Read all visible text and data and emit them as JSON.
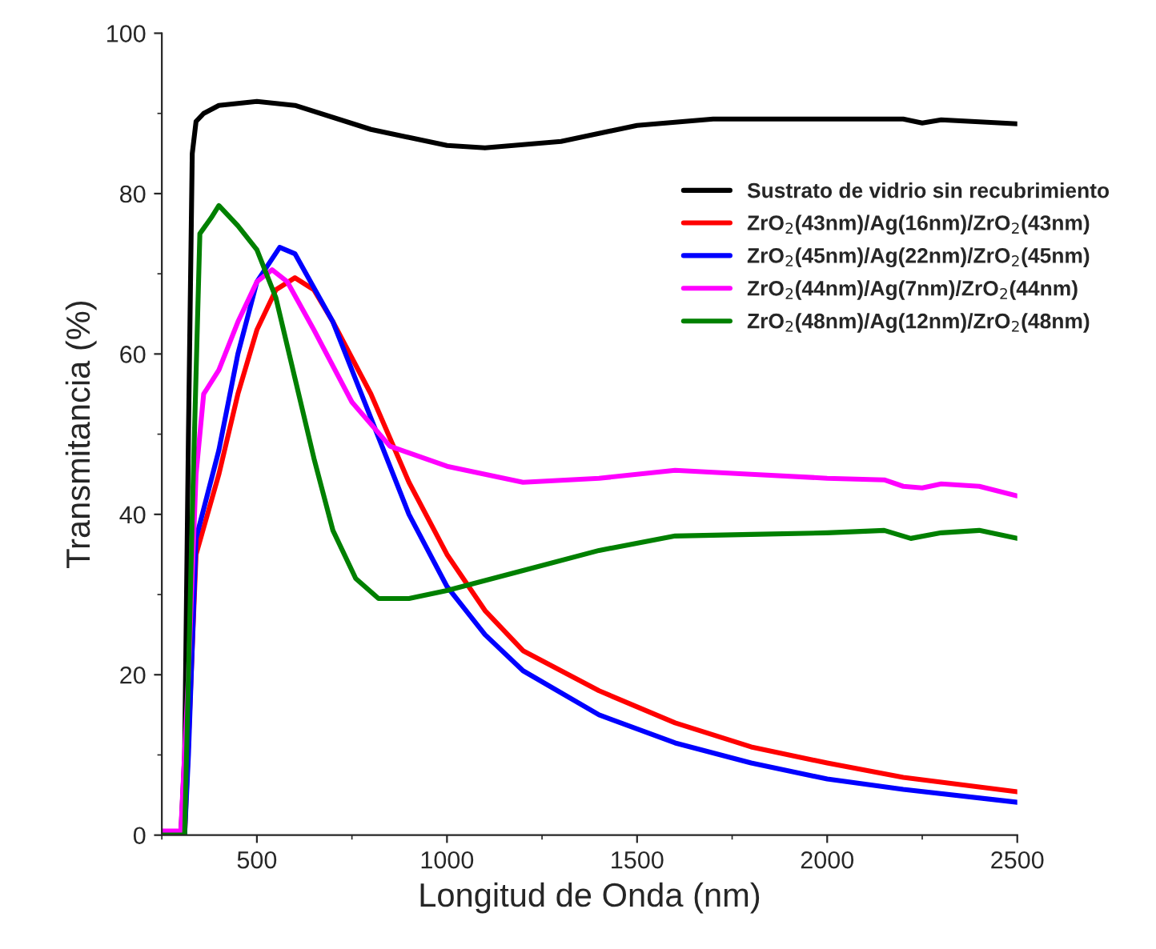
{
  "chart_data": {
    "type": "line",
    "xlabel": "Longitud de Onda (nm)",
    "ylabel": "Transmitancia (%)",
    "xlim": [
      250,
      2500
    ],
    "ylim": [
      0,
      100
    ],
    "xticks": [
      500,
      1000,
      1500,
      2000,
      2500
    ],
    "yticks": [
      0,
      20,
      40,
      60,
      80,
      100
    ],
    "grid": false,
    "legend": "right",
    "line_style": "solid",
    "marker": "none",
    "series": [
      {
        "name": "Sustrato de vidrio sin recubrimiento",
        "color": "#000000",
        "x": [
          250,
          300,
          310,
          320,
          330,
          340,
          360,
          400,
          500,
          600,
          800,
          1000,
          1100,
          1300,
          1500,
          1700,
          2000,
          2200,
          2250,
          2300,
          2500
        ],
        "values": [
          0,
          0,
          10,
          50,
          85,
          89,
          90,
          91,
          91.5,
          91,
          88,
          86,
          85.7,
          86.5,
          88.5,
          89.3,
          89.3,
          89.3,
          88.8,
          89.2,
          88.7
        ]
      },
      {
        "name": "ZrO$_{2}$(43nm)/Ag(16nm)/ZrO$_{2}$(43nm)",
        "color": "#ff0000",
        "x": [
          250,
          310,
          340,
          400,
          450,
          500,
          550,
          600,
          650,
          700,
          800,
          900,
          1000,
          1100,
          1200,
          1400,
          1600,
          1800,
          2000,
          2200,
          2500
        ],
        "values": [
          0,
          0,
          35,
          45,
          55,
          63,
          68,
          69.5,
          68,
          64,
          55,
          44,
          35,
          28,
          23,
          18,
          14,
          11,
          9,
          7.2,
          5.4
        ]
      },
      {
        "name": "ZrO$_{2}$(45nm)/Ag(22nm)/ZrO$_{2}$(45nm)",
        "color": "#0000ff",
        "x": [
          250,
          310,
          320,
          340,
          400,
          450,
          500,
          560,
          600,
          700,
          800,
          900,
          1000,
          1100,
          1200,
          1400,
          1600,
          1800,
          2000,
          2200,
          2500
        ],
        "values": [
          0,
          0,
          10,
          37,
          48,
          60,
          69,
          73.3,
          72.5,
          64,
          52,
          40,
          31,
          25,
          20.5,
          15,
          11.5,
          9,
          7,
          5.7,
          4.1
        ]
      },
      {
        "name": "ZrO$_{2}$(44nm)/Ag(7nm)/ZrO$_{2}$(44nm)",
        "color": "#ff00ff",
        "x": [
          250,
          300,
          320,
          340,
          360,
          400,
          450,
          500,
          540,
          580,
          650,
          750,
          850,
          1000,
          1200,
          1400,
          1600,
          1800,
          2000,
          2150,
          2200,
          2250,
          2300,
          2400,
          2500
        ],
        "values": [
          0.5,
          0.5,
          20,
          45,
          55,
          58,
          64,
          69,
          70.5,
          69,
          63,
          54,
          48.5,
          46,
          44,
          44.5,
          45.5,
          45,
          44.5,
          44.3,
          43.5,
          43.3,
          43.8,
          43.5,
          42.3
        ]
      },
      {
        "name": "ZrO$_{2}$(48nm)/Ag(12nm)/ZrO$_{2}$(48nm)",
        "color": "#008000",
        "x": [
          250,
          310,
          330,
          350,
          380,
          400,
          450,
          500,
          550,
          600,
          650,
          700,
          760,
          820,
          900,
          1000,
          1200,
          1400,
          1600,
          1800,
          2000,
          2150,
          2220,
          2300,
          2400,
          2500
        ],
        "values": [
          0,
          0,
          40,
          75,
          77,
          78.5,
          76,
          73,
          67,
          57,
          47,
          38,
          32,
          29.5,
          29.5,
          30.5,
          33,
          35.5,
          37.3,
          37.5,
          37.7,
          38,
          37,
          37.7,
          38,
          37
        ]
      }
    ]
  }
}
